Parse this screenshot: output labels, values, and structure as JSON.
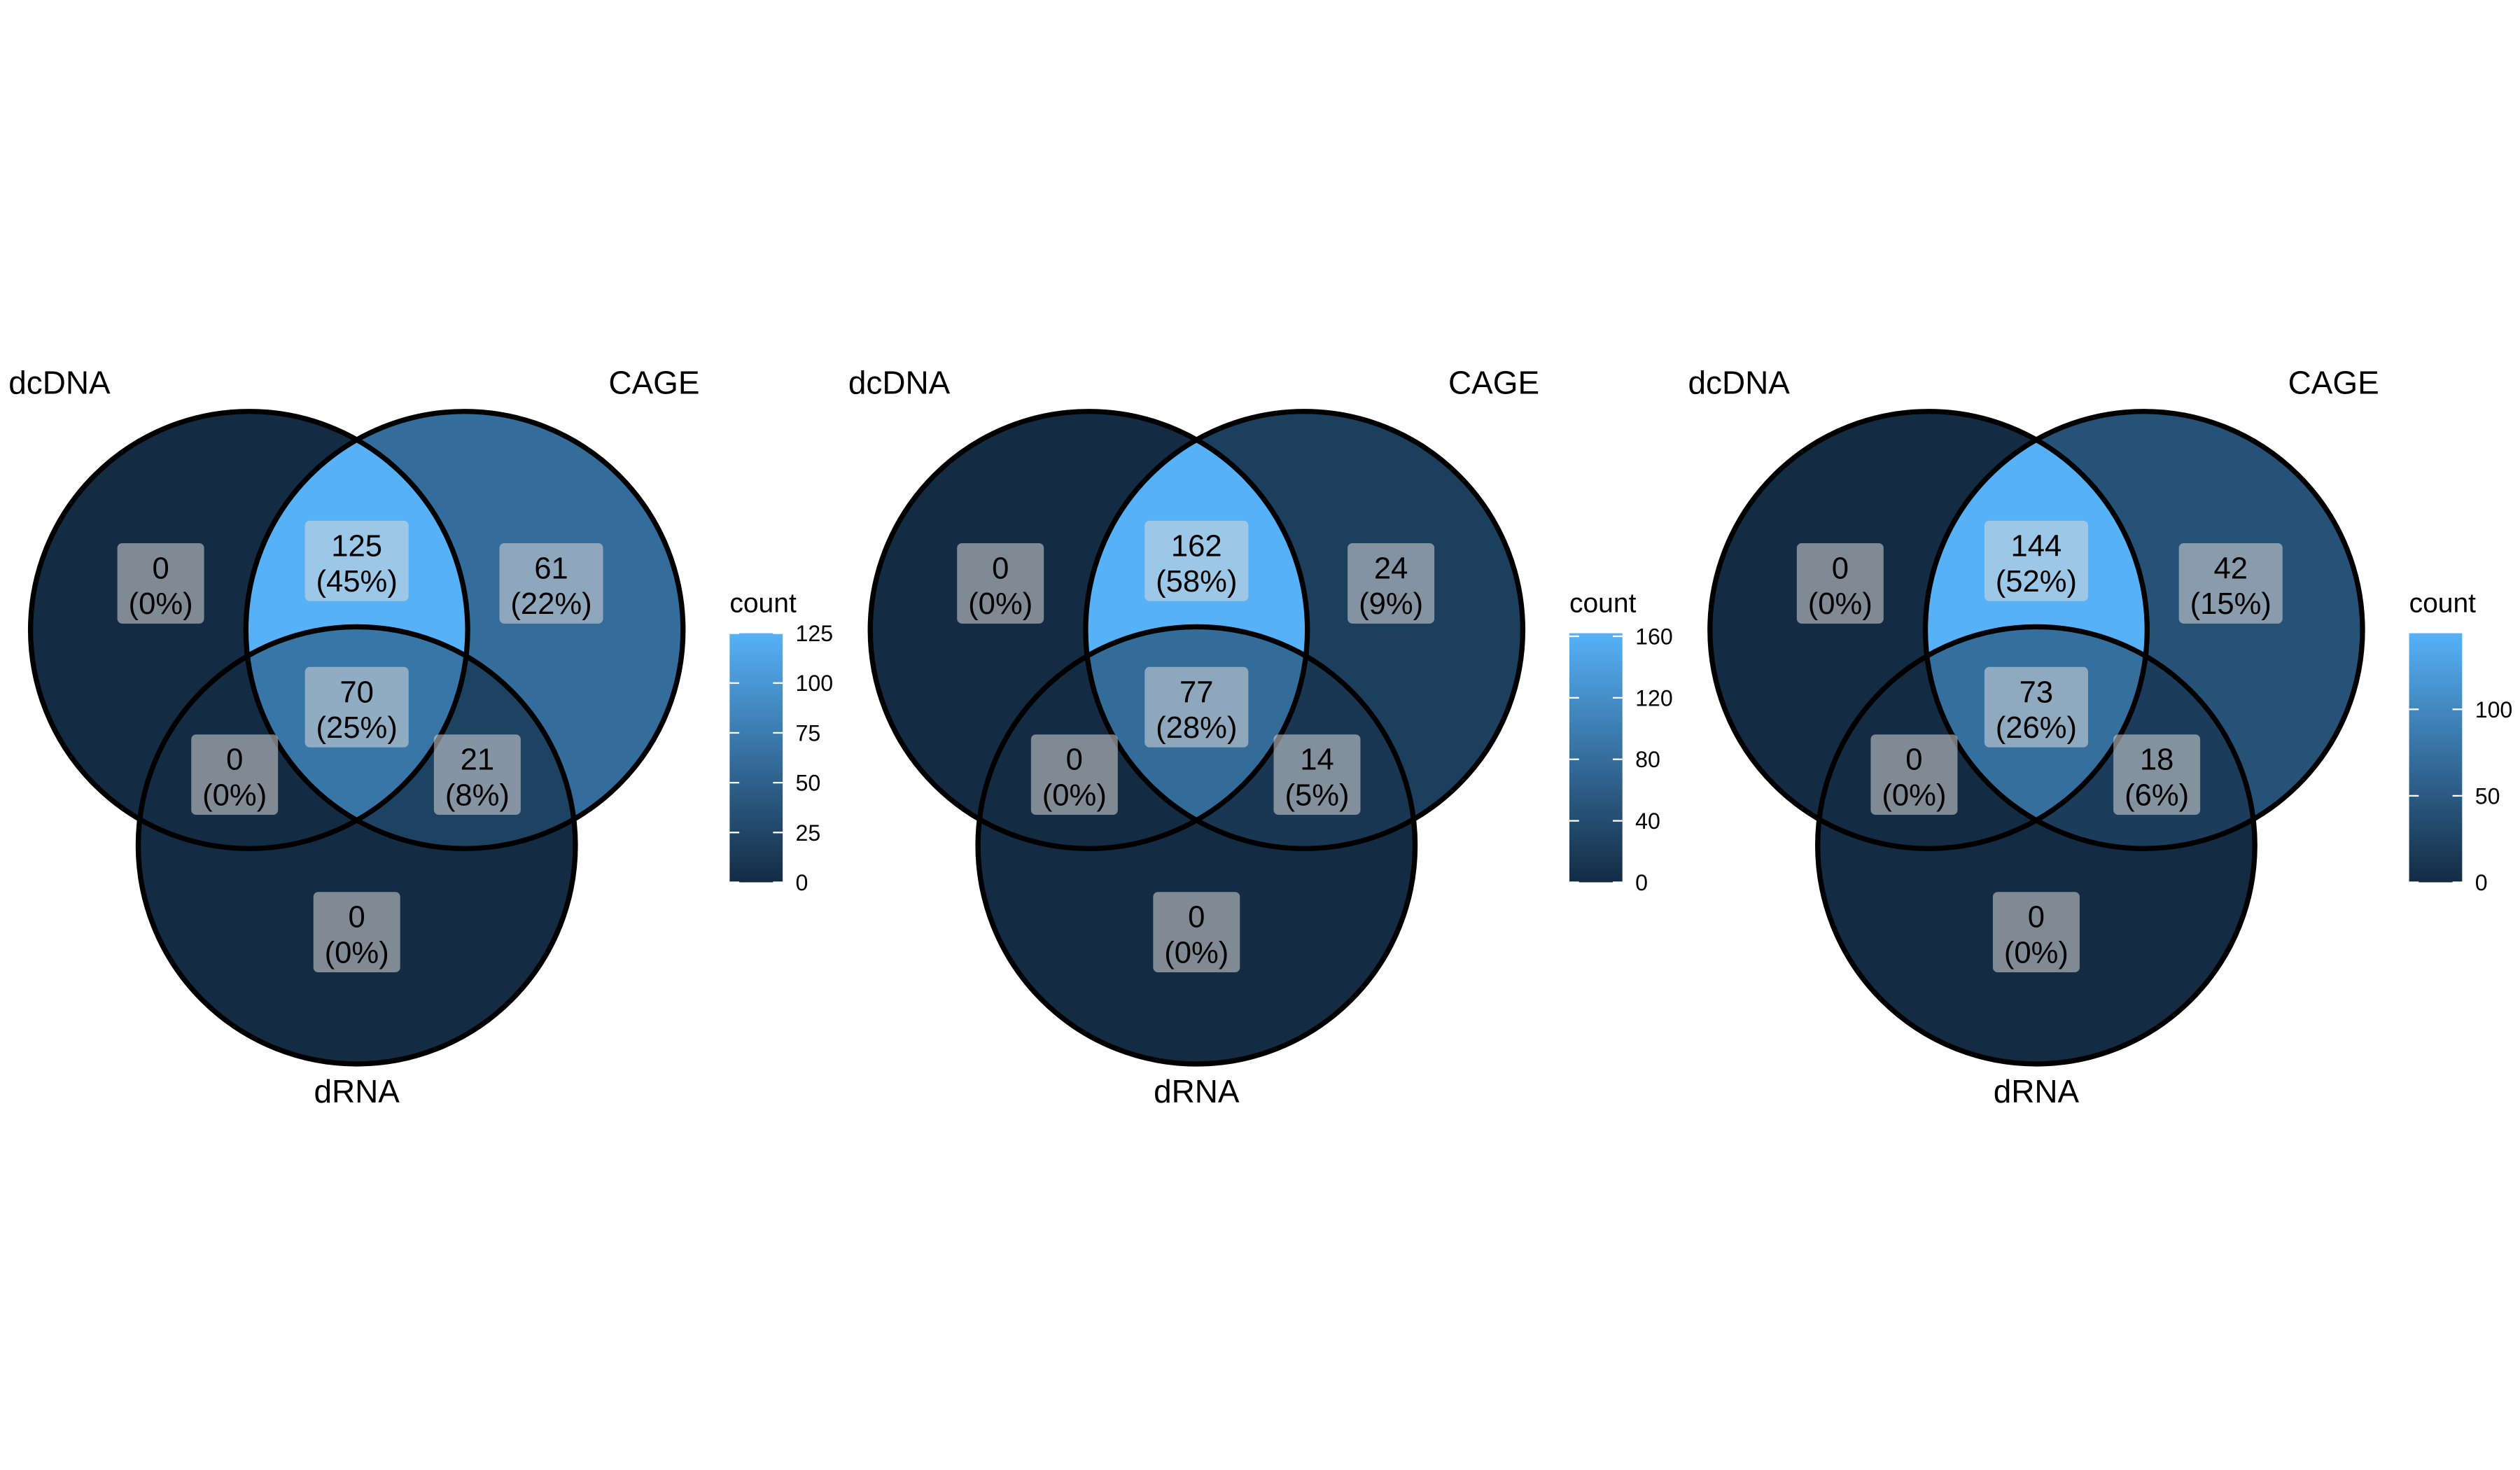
{
  "legend_title": "count",
  "colors": {
    "low": "#132B43",
    "high": "#56B1F7",
    "outline": "#000000",
    "label_box": "#d9d9d9"
  },
  "chart_data": [
    {
      "type": "venn",
      "sets": [
        "dcDNA",
        "CAGE",
        "dRNA"
      ],
      "regions": [
        {
          "sets": [
            "dcDNA"
          ],
          "count": 0,
          "pct": "(0%)"
        },
        {
          "sets": [
            "dcDNA",
            "CAGE"
          ],
          "count": 125,
          "pct": "(45%)"
        },
        {
          "sets": [
            "CAGE"
          ],
          "count": 61,
          "pct": "(22%)"
        },
        {
          "sets": [
            "dcDNA",
            "CAGE",
            "dRNA"
          ],
          "count": 70,
          "pct": "(25%)"
        },
        {
          "sets": [
            "dcDNA",
            "dRNA"
          ],
          "count": 0,
          "pct": "(0%)"
        },
        {
          "sets": [
            "CAGE",
            "dRNA"
          ],
          "count": 21,
          "pct": "(8%)"
        },
        {
          "sets": [
            "dRNA"
          ],
          "count": 0,
          "pct": "(0%)"
        }
      ],
      "legend": {
        "title": "count",
        "min": 0,
        "max": 125,
        "ticks": [
          0,
          25,
          50,
          75,
          100,
          125
        ]
      }
    },
    {
      "type": "venn",
      "sets": [
        "dcDNA",
        "CAGE",
        "dRNA"
      ],
      "regions": [
        {
          "sets": [
            "dcDNA"
          ],
          "count": 0,
          "pct": "(0%)"
        },
        {
          "sets": [
            "dcDNA",
            "CAGE"
          ],
          "count": 162,
          "pct": "(58%)"
        },
        {
          "sets": [
            "CAGE"
          ],
          "count": 24,
          "pct": "(9%)"
        },
        {
          "sets": [
            "dcDNA",
            "CAGE",
            "dRNA"
          ],
          "count": 77,
          "pct": "(28%)"
        },
        {
          "sets": [
            "dcDNA",
            "dRNA"
          ],
          "count": 0,
          "pct": "(0%)"
        },
        {
          "sets": [
            "CAGE",
            "dRNA"
          ],
          "count": 14,
          "pct": "(5%)"
        },
        {
          "sets": [
            "dRNA"
          ],
          "count": 0,
          "pct": "(0%)"
        }
      ],
      "legend": {
        "title": "count",
        "min": 0,
        "max": 162,
        "ticks": [
          0,
          40,
          80,
          120,
          160
        ]
      }
    },
    {
      "type": "venn",
      "sets": [
        "dcDNA",
        "CAGE",
        "dRNA"
      ],
      "regions": [
        {
          "sets": [
            "dcDNA"
          ],
          "count": 0,
          "pct": "(0%)"
        },
        {
          "sets": [
            "dcDNA",
            "CAGE"
          ],
          "count": 144,
          "pct": "(52%)"
        },
        {
          "sets": [
            "CAGE"
          ],
          "count": 42,
          "pct": "(15%)"
        },
        {
          "sets": [
            "dcDNA",
            "CAGE",
            "dRNA"
          ],
          "count": 73,
          "pct": "(26%)"
        },
        {
          "sets": [
            "dcDNA",
            "dRNA"
          ],
          "count": 0,
          "pct": "(0%)"
        },
        {
          "sets": [
            "CAGE",
            "dRNA"
          ],
          "count": 18,
          "pct": "(6%)"
        },
        {
          "sets": [
            "dRNA"
          ],
          "count": 0,
          "pct": "(0%)"
        }
      ],
      "legend": {
        "title": "count",
        "min": 0,
        "max": 144,
        "ticks": [
          0,
          50,
          100
        ]
      }
    }
  ]
}
